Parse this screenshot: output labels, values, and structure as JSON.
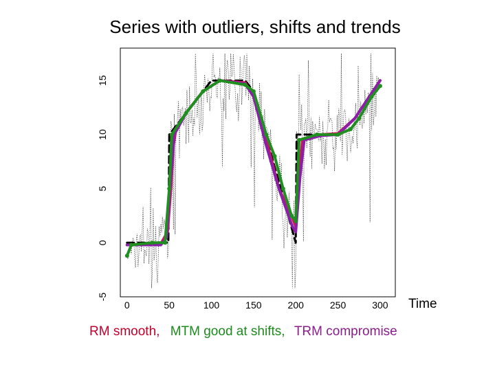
{
  "title": "Series with outliers, shifts and trends",
  "x_axis_label": "Time",
  "caption": {
    "rm": "RM smooth,",
    "mtm": "MTM good at shifts,",
    "trm": "TRM compromise"
  },
  "colors": {
    "raw": "#222222",
    "signal": "#000000",
    "rm": "#d4145a",
    "trm": "#8b1fa8",
    "mtm": "#1f8f1f"
  },
  "chart_data": {
    "type": "line",
    "title": "Series with outliers, shifts and trends",
    "xlabel": "Time",
    "ylabel": "",
    "xlim": [
      -8,
      318
    ],
    "ylim": [
      -5,
      18
    ],
    "x_ticks": [
      0,
      50,
      100,
      150,
      200,
      250,
      300
    ],
    "y_ticks": [
      -5,
      0,
      5,
      10,
      15
    ],
    "grid": false,
    "legend": "none",
    "series": [
      {
        "key": "signal",
        "style": "dashed",
        "points": [
          [
            0,
            0
          ],
          [
            49,
            0
          ],
          [
            50,
            10
          ],
          [
            70,
            12
          ],
          [
            90,
            14
          ],
          [
            100,
            15
          ],
          [
            140,
            15
          ],
          [
            150,
            14
          ],
          [
            200,
            0
          ],
          [
            201,
            10
          ],
          [
            250,
            10
          ],
          [
            270,
            11.5
          ],
          [
            300,
            15
          ]
        ]
      },
      {
        "key": "rm",
        "style": "solid",
        "points": [
          [
            0,
            -0.2
          ],
          [
            40,
            -0.1
          ],
          [
            48,
            1
          ],
          [
            52,
            5
          ],
          [
            55,
            9
          ],
          [
            58,
            10.5
          ],
          [
            70,
            12
          ],
          [
            90,
            14
          ],
          [
            110,
            15
          ],
          [
            140,
            14.8
          ],
          [
            150,
            13.5
          ],
          [
            165,
            9.5
          ],
          [
            180,
            5
          ],
          [
            195,
            2.5
          ],
          [
            200,
            1.5
          ],
          [
            204,
            6
          ],
          [
            208,
            9.6
          ],
          [
            230,
            10
          ],
          [
            250,
            10.1
          ],
          [
            270,
            11.5
          ],
          [
            300,
            15
          ]
        ]
      },
      {
        "key": "trm",
        "style": "solid",
        "points": [
          [
            0,
            -0.2
          ],
          [
            40,
            -0.2
          ],
          [
            47,
            0.5
          ],
          [
            51,
            5
          ],
          [
            56,
            10
          ],
          [
            70,
            12
          ],
          [
            90,
            14
          ],
          [
            110,
            15
          ],
          [
            140,
            14.7
          ],
          [
            150,
            13.5
          ],
          [
            165,
            9
          ],
          [
            180,
            5
          ],
          [
            196,
            1.5
          ],
          [
            200,
            1
          ],
          [
            205,
            6
          ],
          [
            210,
            9.5
          ],
          [
            230,
            9.9
          ],
          [
            250,
            10
          ],
          [
            270,
            11.5
          ],
          [
            300,
            15
          ]
        ]
      },
      {
        "key": "mtm",
        "style": "solid-markers",
        "points": [
          [
            0,
            -1.2
          ],
          [
            5,
            -0.2
          ],
          [
            30,
            0
          ],
          [
            45,
            0
          ],
          [
            50,
            5
          ],
          [
            53,
            10
          ],
          [
            70,
            12
          ],
          [
            90,
            14
          ],
          [
            110,
            15
          ],
          [
            140,
            14.6
          ],
          [
            150,
            14
          ],
          [
            165,
            10
          ],
          [
            175,
            8
          ],
          [
            185,
            5
          ],
          [
            195,
            2.5
          ],
          [
            200,
            2
          ],
          [
            204,
            9.5
          ],
          [
            225,
            10
          ],
          [
            250,
            10
          ],
          [
            265,
            10.5
          ],
          [
            275,
            11.5
          ],
          [
            290,
            13.5
          ],
          [
            300,
            14.5
          ]
        ]
      }
    ]
  }
}
